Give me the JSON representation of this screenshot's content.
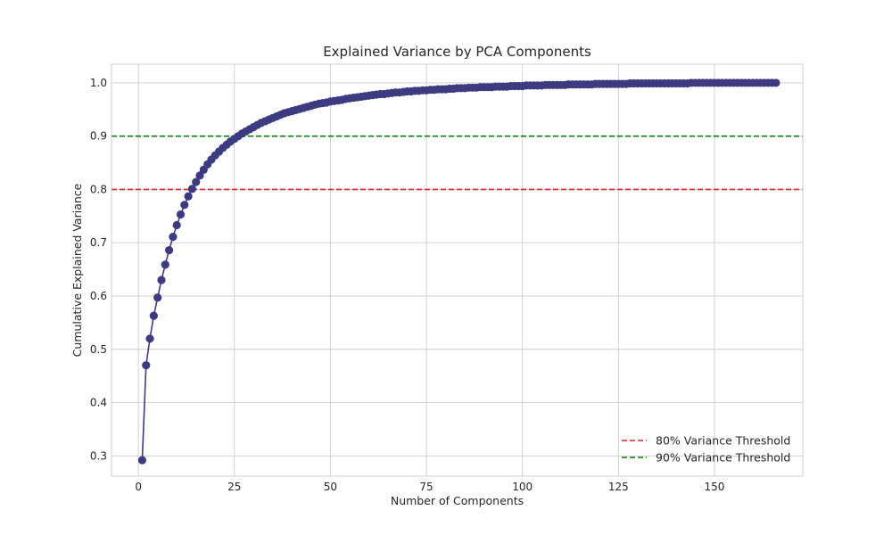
{
  "chart_data": {
    "type": "line",
    "title": "Explained Variance by PCA Components",
    "xlabel": "Number of Components",
    "ylabel": "Cumulative Explained Variance",
    "xlim": [
      -7,
      173
    ],
    "ylim": [
      0.262,
      1.035
    ],
    "xticks": [
      0,
      25,
      50,
      75,
      100,
      125,
      150
    ],
    "yticks": [
      0.3,
      0.4,
      0.5,
      0.6,
      0.7,
      0.8,
      0.9,
      1.0
    ],
    "xtick_labels": [
      "0",
      "25",
      "50",
      "75",
      "100",
      "125",
      "150"
    ],
    "ytick_labels": [
      "0.3",
      "0.4",
      "0.5",
      "0.6",
      "0.7",
      "0.8",
      "0.9",
      "1.0"
    ],
    "grid": true,
    "legend_position": "lower-right",
    "series": [
      {
        "color": "#3d3b80",
        "marker": "circle",
        "x_start": 1,
        "values": [
          0.292,
          0.47,
          0.52,
          0.563,
          0.597,
          0.63,
          0.659,
          0.686,
          0.711,
          0.733,
          0.753,
          0.771,
          0.787,
          0.801,
          0.814,
          0.826,
          0.837,
          0.847,
          0.856,
          0.864,
          0.871,
          0.878,
          0.884,
          0.89,
          0.895,
          0.9,
          0.905,
          0.909,
          0.913,
          0.917,
          0.921,
          0.925,
          0.928,
          0.931,
          0.934,
          0.937,
          0.94,
          0.943,
          0.945,
          0.947,
          0.949,
          0.951,
          0.953,
          0.955,
          0.957,
          0.959,
          0.961,
          0.962,
          0.963,
          0.965,
          0.966,
          0.967,
          0.968,
          0.97,
          0.971,
          0.972,
          0.973,
          0.974,
          0.975,
          0.976,
          0.977,
          0.978,
          0.979,
          0.979,
          0.98,
          0.981,
          0.982,
          0.982,
          0.983,
          0.984,
          0.984,
          0.985,
          0.985,
          0.986,
          0.986,
          0.987,
          0.987,
          0.988,
          0.988,
          0.988,
          0.989,
          0.989,
          0.99,
          0.99,
          0.99,
          0.991,
          0.991,
          0.991,
          0.992,
          0.992,
          0.992,
          0.992,
          0.993,
          0.993,
          0.993,
          0.993,
          0.994,
          0.994,
          0.994,
          0.994,
          0.995,
          0.995,
          0.995,
          0.995,
          0.995,
          0.996,
          0.996,
          0.996,
          0.996,
          0.996,
          0.996,
          0.997,
          0.997,
          0.997,
          0.997,
          0.997,
          0.997,
          0.997,
          0.998,
          0.998,
          0.998,
          0.998,
          0.998,
          0.998,
          0.998,
          0.998,
          0.998,
          0.999,
          0.999,
          0.999,
          0.999,
          0.999,
          0.999,
          0.999,
          0.999,
          0.999,
          0.999,
          0.999,
          0.999,
          0.999,
          0.999,
          0.999,
          0.999,
          1.0,
          1.0,
          1.0,
          1.0,
          1.0,
          1.0,
          1.0,
          1.0,
          1.0,
          1.0,
          1.0,
          1.0,
          1.0,
          1.0,
          1.0,
          1.0,
          1.0,
          1.0,
          1.0,
          1.0,
          1.0,
          1.0,
          1.0
        ]
      }
    ],
    "reference_lines": [
      {
        "y": 0.8,
        "label": "80% Variance Threshold",
        "color": "#d62728",
        "style": "dashed"
      },
      {
        "y": 0.9,
        "label": "90% Variance Threshold",
        "color": "#008000",
        "style": "dashed"
      }
    ]
  }
}
